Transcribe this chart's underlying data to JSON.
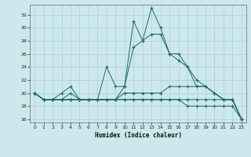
{
  "title": "",
  "xlabel": "Humidex (Indice chaleur)",
  "ylabel": "",
  "bg_color": "#cce8ec",
  "grid_color": "#aacdd4",
  "line_color": "#1a6b60",
  "xlim": [
    -0.5,
    23.5
  ],
  "ylim": [
    15.5,
    33.5
  ],
  "xticks": [
    0,
    1,
    2,
    3,
    4,
    5,
    6,
    7,
    8,
    9,
    10,
    11,
    12,
    13,
    14,
    15,
    16,
    17,
    18,
    19,
    20,
    21,
    22,
    23
  ],
  "yticks": [
    16,
    18,
    20,
    22,
    24,
    26,
    28,
    30,
    32
  ],
  "series": [
    [
      20,
      19,
      19,
      19,
      20,
      19,
      19,
      19,
      19,
      19,
      21,
      27,
      28,
      33,
      30,
      26,
      26,
      24,
      21,
      21,
      20,
      19,
      19,
      16
    ],
    [
      20,
      19,
      19,
      20,
      21,
      19,
      19,
      19,
      24,
      21,
      21,
      31,
      28,
      29,
      29,
      26,
      25,
      24,
      22,
      21,
      20,
      19,
      19,
      16
    ],
    [
      20,
      19,
      19,
      19,
      19,
      19,
      19,
      19,
      19,
      19,
      20,
      20,
      20,
      20,
      20,
      21,
      21,
      21,
      21,
      21,
      20,
      19,
      19,
      16
    ],
    [
      20,
      19,
      19,
      19,
      19,
      19,
      19,
      19,
      19,
      19,
      19,
      19,
      19,
      19,
      19,
      19,
      19,
      18,
      18,
      18,
      18,
      18,
      18,
      16
    ],
    [
      20,
      19,
      19,
      19,
      19,
      19,
      19,
      19,
      19,
      19,
      19,
      19,
      19,
      19,
      19,
      19,
      19,
      19,
      19,
      19,
      19,
      19,
      19,
      16
    ]
  ]
}
